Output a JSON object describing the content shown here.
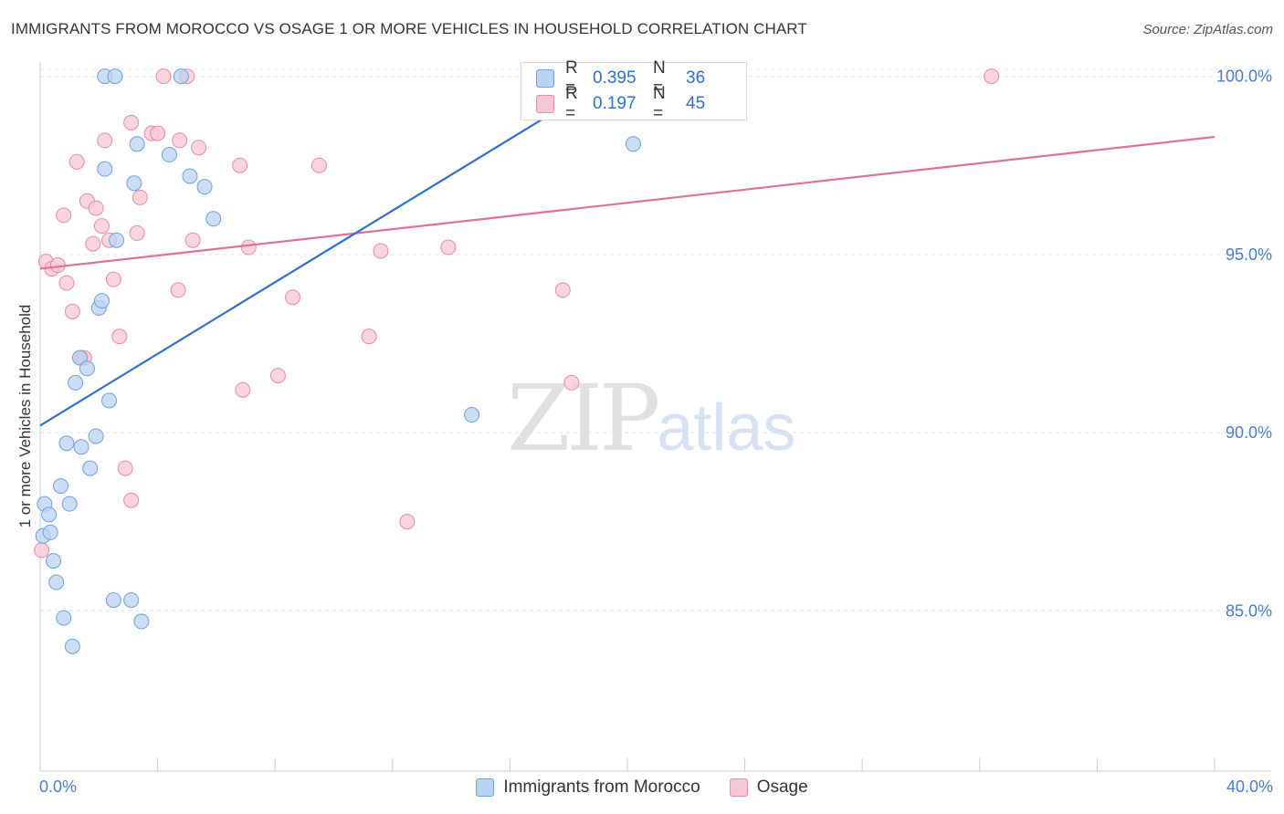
{
  "header": {
    "title": "IMMIGRANTS FROM MOROCCO VS OSAGE 1 OR MORE VEHICLES IN HOUSEHOLD CORRELATION CHART",
    "source": "Source: ZipAtlas.com"
  },
  "watermark": {
    "zip": "ZIP",
    "atlas": "atlas"
  },
  "legend_top": {
    "rows": [
      {
        "r_label": "R = ",
        "r_value": "0.395",
        "n_label": "N = ",
        "n_value": "36"
      },
      {
        "r_label": "R = ",
        "r_value": "0.197",
        "n_label": "N = ",
        "n_value": "45"
      }
    ]
  },
  "legend_bottom": {
    "items": [
      "Immigrants from Morocco",
      "Osage"
    ]
  },
  "chart_data": {
    "type": "scatter",
    "title": "IMMIGRANTS FROM MOROCCO VS OSAGE 1 OR MORE VEHICLES IN HOUSEHOLD CORRELATION CHART",
    "xlabel": "",
    "ylabel": "1 or more Vehicles in Household",
    "xlim": [
      0,
      40
    ],
    "ylim": [
      80.5,
      100.4
    ],
    "x_tick_labels": [
      "0.0%",
      "40.0%"
    ],
    "y_ticks": [
      85,
      90,
      95,
      100
    ],
    "y_tick_labels": [
      "85.0%",
      "90.0%",
      "95.0%",
      "100.0%"
    ],
    "colors": {
      "blue": "#2f6fcf",
      "blue_fill": "#b9d3f2",
      "pink": "#e0709a",
      "pink_fill": "#f8c7d6",
      "axis_text": "#4a7cc9"
    },
    "series": [
      {
        "name": "Immigrants from Morocco",
        "color": "blue",
        "R": 0.395,
        "N": 36,
        "trend": {
          "x": [
            0,
            19.5
          ],
          "y": [
            90.2,
            100.0
          ]
        },
        "points": [
          [
            0.1,
            87.1
          ],
          [
            0.15,
            88.0
          ],
          [
            0.3,
            87.7
          ],
          [
            0.35,
            87.2
          ],
          [
            0.45,
            86.4
          ],
          [
            0.55,
            85.8
          ],
          [
            0.7,
            88.5
          ],
          [
            0.8,
            84.8
          ],
          [
            0.9,
            89.7
          ],
          [
            1.0,
            88.0
          ],
          [
            1.1,
            84.0
          ],
          [
            1.2,
            91.4
          ],
          [
            1.35,
            92.1
          ],
          [
            1.4,
            89.6
          ],
          [
            1.6,
            91.8
          ],
          [
            1.7,
            89.0
          ],
          [
            1.9,
            89.9
          ],
          [
            2.0,
            93.5
          ],
          [
            2.1,
            93.7
          ],
          [
            2.2,
            97.4
          ],
          [
            2.35,
            90.9
          ],
          [
            2.5,
            85.3
          ],
          [
            2.6,
            95.4
          ],
          [
            2.2,
            100.0
          ],
          [
            2.55,
            100.0
          ],
          [
            3.1,
            85.3
          ],
          [
            3.2,
            97.0
          ],
          [
            3.3,
            98.1
          ],
          [
            3.45,
            84.7
          ],
          [
            4.4,
            97.8
          ],
          [
            4.8,
            100.0
          ],
          [
            5.1,
            97.2
          ],
          [
            5.6,
            96.9
          ],
          [
            5.9,
            96.0
          ],
          [
            14.7,
            90.5
          ],
          [
            20.2,
            98.1
          ]
        ]
      },
      {
        "name": "Osage",
        "color": "pink",
        "R": 0.197,
        "N": 45,
        "trend": {
          "x": [
            0,
            40
          ],
          "y": [
            94.6,
            98.3
          ]
        },
        "points": [
          [
            0.05,
            86.7
          ],
          [
            0.2,
            94.8
          ],
          [
            0.4,
            94.6
          ],
          [
            0.6,
            94.7
          ],
          [
            0.8,
            96.1
          ],
          [
            0.9,
            94.2
          ],
          [
            1.1,
            93.4
          ],
          [
            1.25,
            97.6
          ],
          [
            1.4,
            92.1
          ],
          [
            1.5,
            92.1
          ],
          [
            1.6,
            96.5
          ],
          [
            1.8,
            95.3
          ],
          [
            1.9,
            96.3
          ],
          [
            2.1,
            95.8
          ],
          [
            2.2,
            98.2
          ],
          [
            2.35,
            95.4
          ],
          [
            2.5,
            94.3
          ],
          [
            2.7,
            92.7
          ],
          [
            2.9,
            89.0
          ],
          [
            3.1,
            98.7
          ],
          [
            3.1,
            88.1
          ],
          [
            3.3,
            95.6
          ],
          [
            3.4,
            96.6
          ],
          [
            3.8,
            98.4
          ],
          [
            4.0,
            98.4
          ],
          [
            4.2,
            100.0
          ],
          [
            4.7,
            94.0
          ],
          [
            4.75,
            98.2
          ],
          [
            5.0,
            100.0
          ],
          [
            5.2,
            95.4
          ],
          [
            5.4,
            98.0
          ],
          [
            6.8,
            97.5
          ],
          [
            6.9,
            91.2
          ],
          [
            7.1,
            95.2
          ],
          [
            8.1,
            91.6
          ],
          [
            8.6,
            93.8
          ],
          [
            9.5,
            97.5
          ],
          [
            11.2,
            92.7
          ],
          [
            11.6,
            95.1
          ],
          [
            12.5,
            87.5
          ],
          [
            13.9,
            95.2
          ],
          [
            17.8,
            94.0
          ],
          [
            18.1,
            91.4
          ],
          [
            23.3,
            100.0
          ],
          [
            32.4,
            100.0
          ]
        ]
      }
    ]
  }
}
